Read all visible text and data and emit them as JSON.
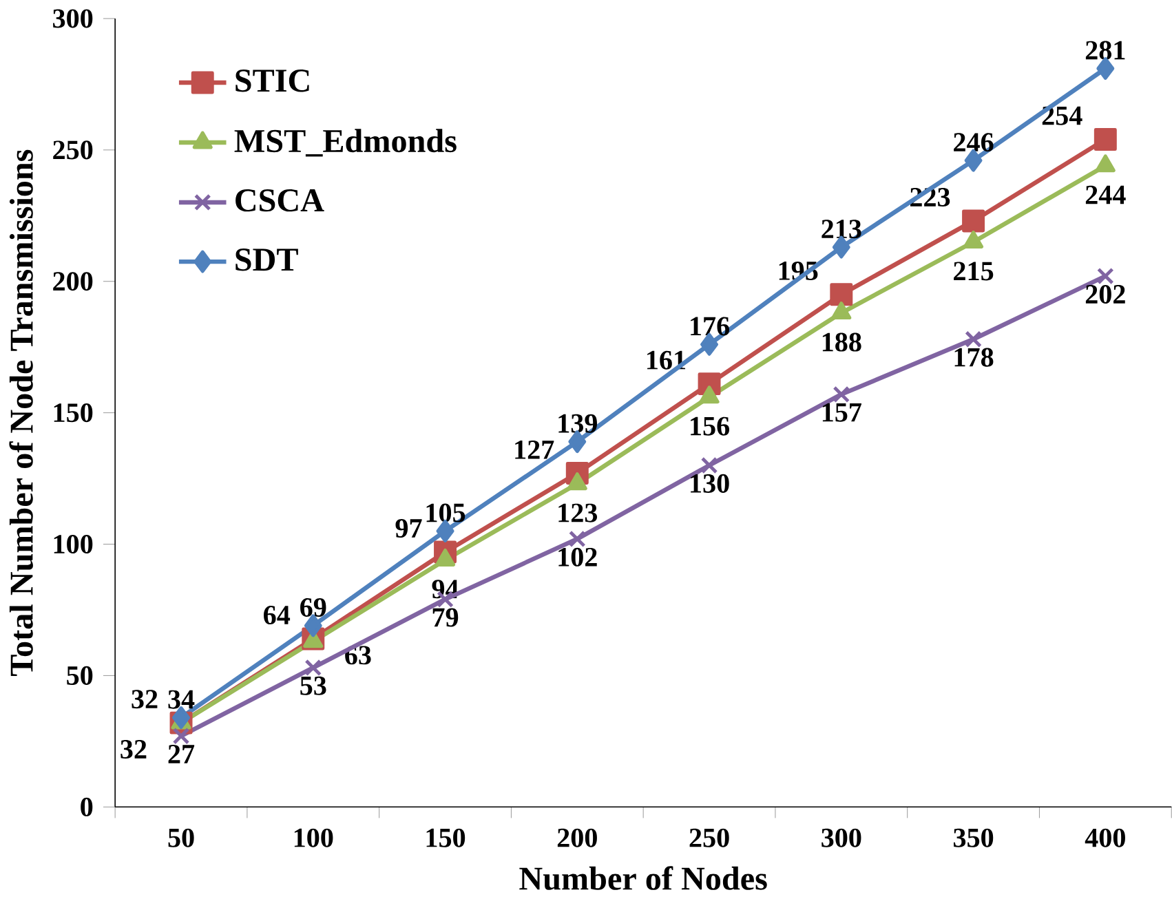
{
  "chart_data": {
    "type": "line",
    "xlabel": "Number of Nodes",
    "ylabel": "Total Number of Node Transmissions",
    "categories": [
      "50",
      "100",
      "150",
      "200",
      "250",
      "300",
      "350",
      "400"
    ],
    "ylim": [
      0,
      300
    ],
    "yticks": [
      0,
      50,
      100,
      150,
      200,
      250,
      300
    ],
    "grid": false,
    "legend": "top left",
    "data_labels": true,
    "series": [
      {
        "name": "STIC",
        "color": "#c0504d",
        "marker": "square",
        "values": [
          32,
          64,
          97,
          127,
          161,
          195,
          223,
          254
        ]
      },
      {
        "name": "MST_Edmonds",
        "color": "#9bbb59",
        "marker": "triangle",
        "values": [
          32,
          63,
          94,
          123,
          156,
          188,
          215,
          244
        ]
      },
      {
        "name": "CSCA",
        "color": "#8064a2",
        "marker": "cross",
        "values": [
          27,
          53,
          79,
          102,
          130,
          157,
          178,
          202
        ]
      },
      {
        "name": "SDT",
        "color": "#4f81bd",
        "marker": "diamond",
        "values": [
          34,
          69,
          105,
          139,
          176,
          213,
          246,
          281
        ]
      }
    ]
  }
}
